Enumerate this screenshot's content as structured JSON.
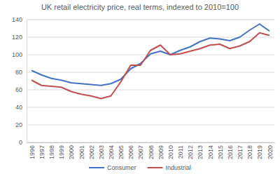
{
  "chart_data": {
    "type": "line",
    "title": "UK retail electricity price, real terms, indexed to 2010=100",
    "categories": [
      "1996",
      "1997",
      "1998",
      "1999",
      "2000",
      "2001",
      "2002",
      "2003",
      "2004",
      "2005",
      "2006",
      "2007",
      "2008",
      "2009",
      "2010",
      "2011",
      "2012",
      "2013",
      "2014",
      "2015",
      "2016",
      "2017",
      "2018",
      "2019",
      "2020"
    ],
    "series": [
      {
        "name": "Consumer",
        "color": "#4472c4",
        "values": [
          82,
          77,
          73,
          71,
          68,
          67,
          66,
          65,
          67,
          72,
          84,
          90,
          101,
          104,
          100,
          105,
          109,
          115,
          119,
          118,
          116,
          120,
          128,
          135,
          127
        ]
      },
      {
        "name": "Industrial",
        "color": "#c0504d",
        "values": [
          71,
          65,
          64,
          63,
          58,
          55,
          53,
          50,
          53,
          69,
          88,
          88,
          105,
          111,
          100,
          101,
          104,
          107,
          111,
          112,
          107,
          110,
          115,
          125,
          122
        ]
      }
    ],
    "ylim": [
      0,
      140
    ],
    "yticks": [
      0,
      20,
      40,
      60,
      80,
      100,
      120,
      140
    ],
    "grid": true,
    "legend": "bottom"
  }
}
